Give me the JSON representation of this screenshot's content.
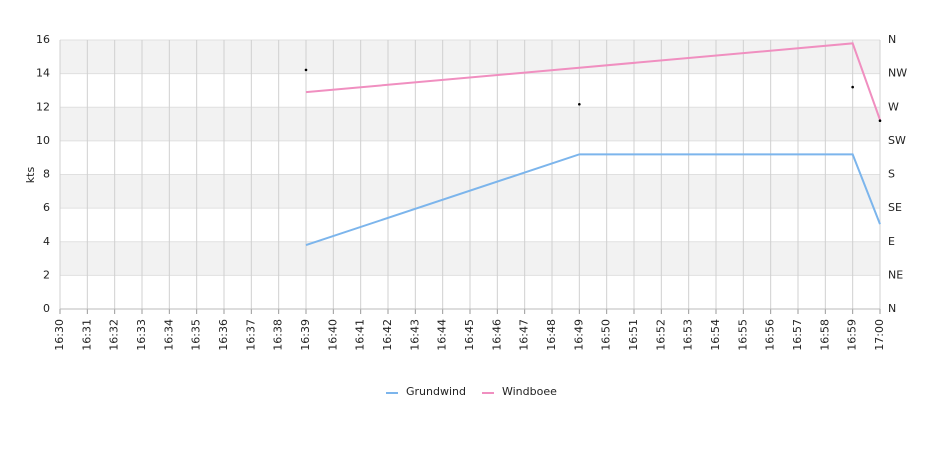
{
  "chart_data": {
    "type": "line",
    "y_label": "kts",
    "categories": [
      "16:30",
      "16:31",
      "16:32",
      "16:33",
      "16:34",
      "16:35",
      "16:36",
      "16:37",
      "16:38",
      "16:39",
      "16:40",
      "16:41",
      "16:42",
      "16:43",
      "16:44",
      "16:45",
      "16:46",
      "16:47",
      "16:48",
      "16:49",
      "16:50",
      "16:51",
      "16:52",
      "16:53",
      "16:54",
      "16:55",
      "16:56",
      "16:57",
      "16:58",
      "16:59",
      "17:00"
    ],
    "series": [
      {
        "name": "Grundwind",
        "color": "#7cb5ec",
        "x": [
          "16:39",
          "16:49",
          "16:59",
          "17:00"
        ],
        "values": [
          3.8,
          9.2,
          9.2,
          5.05
        ]
      },
      {
        "name": "Windboee",
        "color": "#f08fc0",
        "x": [
          "16:39",
          "16:49",
          "16:59",
          "17:00"
        ],
        "values": [
          12.9,
          14.35,
          15.8,
          11.25
        ]
      }
    ],
    "direction": {
      "axis": "y2",
      "color": "#000000",
      "x": [
        "16:39",
        "16:49",
        "16:59",
        "17:00"
      ],
      "values": [
        320,
        274,
        297,
        252
      ]
    },
    "ylim": [
      0,
      16
    ],
    "yticks": [
      0,
      2,
      4,
      6,
      8,
      10,
      12,
      14,
      16
    ],
    "y2lim": [
      0,
      360
    ],
    "y2ticks": [
      {
        "value": 0,
        "label": "N"
      },
      {
        "value": 45,
        "label": "NE"
      },
      {
        "value": 90,
        "label": "E"
      },
      {
        "value": 135,
        "label": "SE"
      },
      {
        "value": 180,
        "label": "S"
      },
      {
        "value": 225,
        "label": "SW"
      },
      {
        "value": 270,
        "label": "W"
      },
      {
        "value": 315,
        "label": "NW"
      },
      {
        "value": 360,
        "label": "N"
      }
    ],
    "grid": true
  }
}
